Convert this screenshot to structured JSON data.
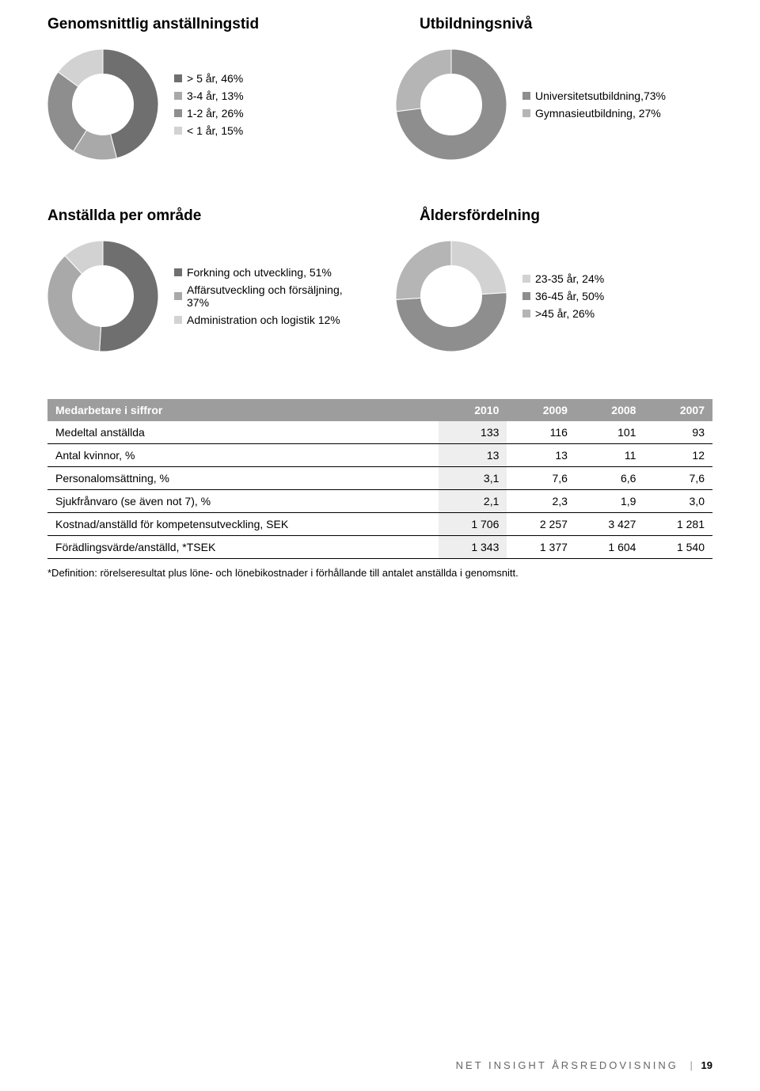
{
  "headings": {
    "anst_tid": "Genomsnittlig anställningstid",
    "utbildning": "Utbildningsnivå",
    "omrade": "Anställda per område",
    "alder": "Åldersfördelning"
  },
  "charts": {
    "anst_tid": {
      "type": "donut",
      "inner_radius_ratio": 0.55,
      "slices": [
        {
          "label": "> 5 år, 46%",
          "value": 46,
          "color": "#6f6f6f"
        },
        {
          "label": "3-4 år, 13%",
          "value": 13,
          "color": "#a9a9a9"
        },
        {
          "label": "1-2 år, 26%",
          "value": 26,
          "color": "#8e8e8e"
        },
        {
          "label": "< 1 år, 15%",
          "value": 15,
          "color": "#d2d2d2"
        }
      ]
    },
    "utbildning": {
      "type": "donut",
      "inner_radius_ratio": 0.55,
      "slices": [
        {
          "label": "Universitetsutbildning,73%",
          "value": 73,
          "color": "#8e8e8e"
        },
        {
          "label": "Gymnasieutbildning, 27%",
          "value": 27,
          "color": "#b5b5b5"
        }
      ]
    },
    "omrade": {
      "type": "donut",
      "inner_radius_ratio": 0.55,
      "slices": [
        {
          "label": "Forkning och utveckling, 51%",
          "value": 51,
          "color": "#6f6f6f"
        },
        {
          "label": "Affärsutveckling och försäljning, 37%",
          "value": 37,
          "color": "#a9a9a9"
        },
        {
          "label": "Administration och logistik 12%",
          "value": 12,
          "color": "#d2d2d2"
        }
      ]
    },
    "alder": {
      "type": "donut",
      "inner_radius_ratio": 0.55,
      "slices": [
        {
          "label": "23-35 år, 24%",
          "value": 24,
          "color": "#d2d2d2"
        },
        {
          "label": "36-45 år, 50%",
          "value": 50,
          "color": "#8e8e8e"
        },
        {
          "label": ">45 år, 26%",
          "value": 26,
          "color": "#b5b5b5"
        }
      ]
    }
  },
  "table": {
    "header": [
      "Medarbetare i siffror",
      "2010",
      "2009",
      "2008",
      "2007"
    ],
    "rows": [
      [
        "Medeltal anställda",
        "133",
        "116",
        "101",
        "93"
      ],
      [
        "Antal kvinnor, %",
        "13",
        "13",
        "11",
        "12"
      ],
      [
        "Personalomsättning, %",
        "3,1",
        "7,6",
        "6,6",
        "7,6"
      ],
      [
        "Sjukfrånvaro (se även not 7), %",
        "2,1",
        "2,3",
        "1,9",
        "3,0"
      ],
      [
        "Kostnad/anställd för kompetensutveckling, SEK",
        "1 706",
        "2 257",
        "3 427",
        "1 281"
      ],
      [
        "Förädlingsvärde/anställd, *TSEK",
        "1 343",
        "1 377",
        "1 604",
        "1 540"
      ]
    ],
    "highlight_col_index": 1,
    "header_bg": "#9d9d9d",
    "header_fg": "#ffffff",
    "highlight_bg": "#eeeeee"
  },
  "footnote": "*Definition: rörelseresultat plus löne- och lönebikostnader i förhållande till antalet anställda i genomsnitt.",
  "footer": {
    "text": "NET INSIGHT ÅRSREDOVISNING",
    "sep": "|",
    "pageno": "19"
  }
}
